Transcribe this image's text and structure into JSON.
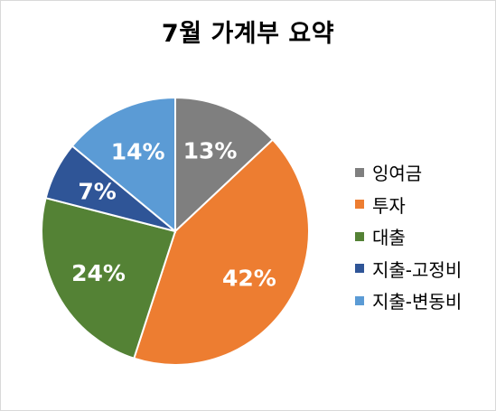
{
  "chart_data": {
    "type": "pie",
    "title": "7월 가계부 요약",
    "categories": [
      "잉여금",
      "투자",
      "대출",
      "지출-고정비",
      "지출-변동비"
    ],
    "values": [
      13,
      42,
      24,
      7,
      14
    ],
    "labels": [
      "13%",
      "42%",
      "24%",
      "7%",
      "14%"
    ],
    "colors": [
      "#7f7f7f",
      "#ed7d31",
      "#548235",
      "#2f5597",
      "#5b9bd5"
    ],
    "label_color": "#ffffff",
    "legend_position": "right"
  }
}
